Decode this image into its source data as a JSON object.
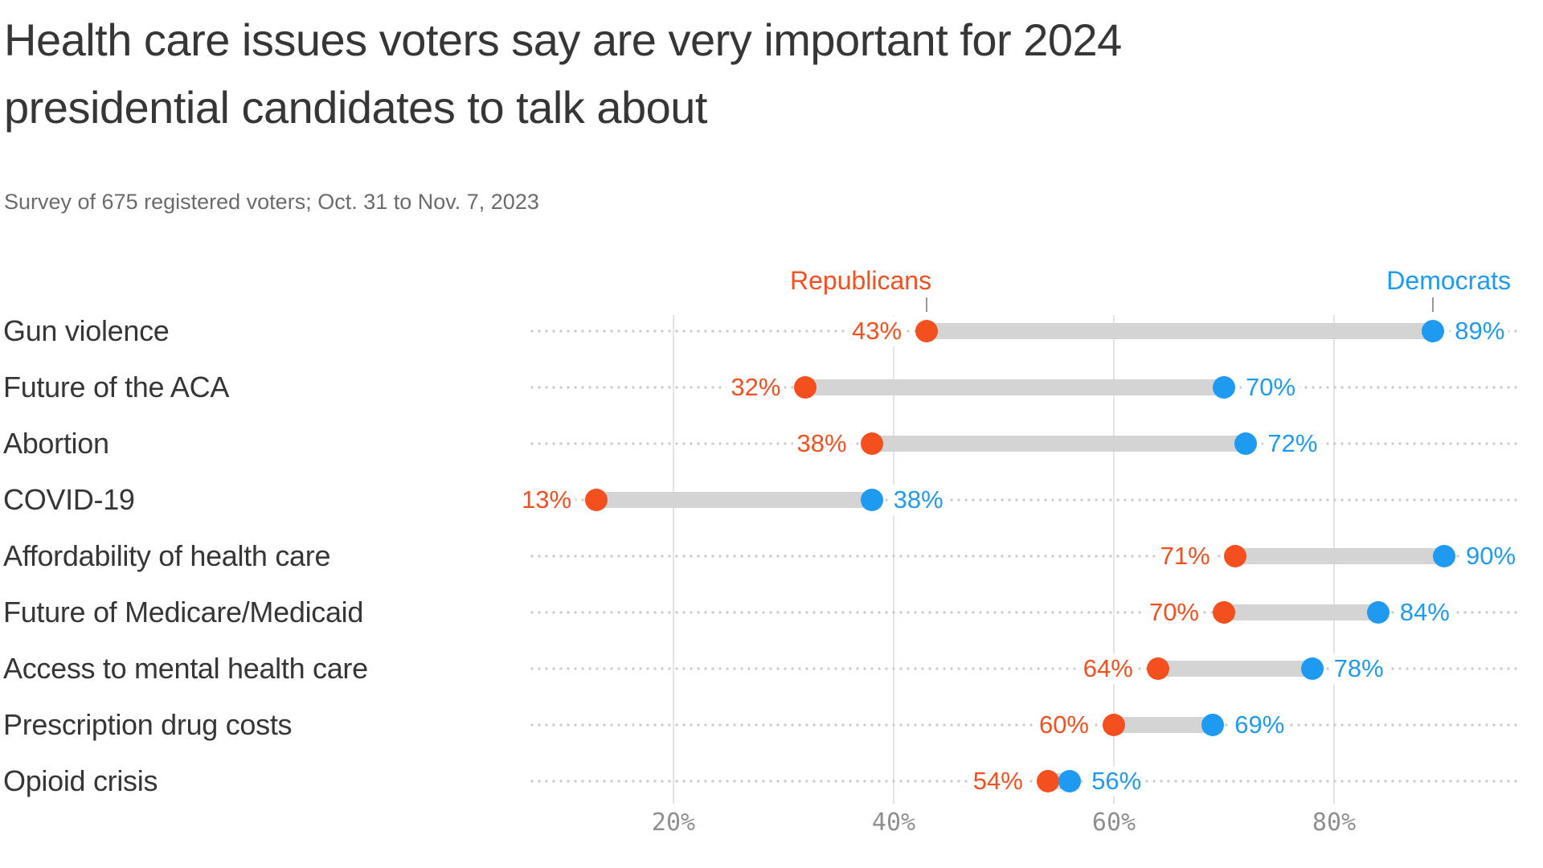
{
  "colors": {
    "republicans": "#f4501f",
    "democrats": "#1e9bf0",
    "connector": "#d4d4d4",
    "leader_dots": "#cccccc",
    "gridline": "#e4e4e4",
    "legend_pointer": "#999999",
    "title_text": "#363636",
    "subtitle_text": "#6b6b6b",
    "category_text": "#363636",
    "axis_tick_text": "#8f8f8f"
  },
  "chart_data": {
    "type": "dumbbell",
    "title": "Health care issues voters say are very important for 2024 presidential candidates to talk about",
    "subtitle": "Survey of 675 registered voters; Oct. 31 to Nov. 7, 2023",
    "categories": [
      "Gun violence",
      "Future of the ACA",
      "Abortion",
      "COVID-19",
      "Affordability of health care",
      "Future of Medicare/Medicaid",
      "Access to mental health care",
      "Prescription drug costs",
      "Opioid crisis"
    ],
    "series": [
      {
        "name": "Republicans",
        "color": "#f4501f",
        "values": [
          43,
          32,
          38,
          13,
          71,
          70,
          64,
          60,
          54
        ]
      },
      {
        "name": "Democrats",
        "color": "#1e9bf0",
        "values": [
          89,
          70,
          72,
          38,
          90,
          84,
          78,
          69,
          56
        ]
      }
    ],
    "value_suffix": "%",
    "x_axis": {
      "tick_values": [
        20,
        40,
        60,
        80
      ],
      "tick_labels": [
        "20%",
        "40%",
        "60%",
        "80%"
      ],
      "range": [
        0,
        100
      ],
      "grid": true
    },
    "legend": {
      "position": "top",
      "entries": [
        "Republicans",
        "Democrats"
      ]
    }
  }
}
